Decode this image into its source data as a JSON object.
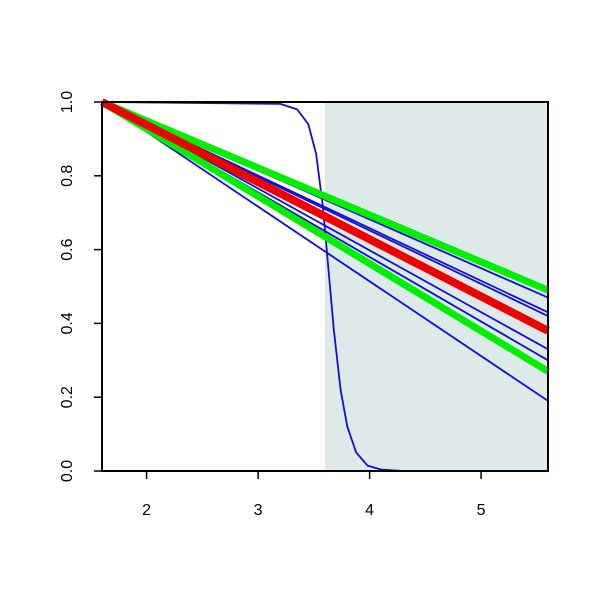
{
  "chart_data": {
    "type": "line",
    "xlim": [
      1.6,
      5.6
    ],
    "ylim": [
      0,
      1
    ],
    "xticks": [
      2,
      3,
      4,
      5
    ],
    "yticks": [
      {
        "value": 0,
        "label": "0.0"
      },
      0.2,
      0.4,
      0.6,
      0.8,
      {
        "value": 1,
        "label": "1.0"
      }
    ],
    "shade": {
      "x": [
        3.6,
        5.6
      ],
      "color": "#deeaea"
    },
    "series": [
      {
        "color": "#1010d0",
        "width": 1.8,
        "x": [
          1.6,
          5.6
        ],
        "values": [
          1,
          0.19
        ]
      },
      {
        "color": "#1010d0",
        "width": 1.8,
        "x": [
          1.6,
          5.6
        ],
        "values": [
          1,
          0.3
        ]
      },
      {
        "color": "#1010d0",
        "width": 1.8,
        "x": [
          1.6,
          5.6
        ],
        "values": [
          1,
          0.33
        ]
      },
      {
        "color": "#1010d0",
        "width": 1.8,
        "x": [
          1.6,
          5.6
        ],
        "values": [
          1,
          0.42
        ]
      },
      {
        "color": "#1010d0",
        "width": 1.8,
        "x": [
          1.6,
          5.6
        ],
        "values": [
          1,
          0.43
        ]
      },
      {
        "color": "#1010d0",
        "width": 1.8,
        "x": [
          1.6,
          5.6
        ],
        "values": [
          1,
          0.47
        ]
      },
      {
        "color": "#1010d0",
        "width": 1.8,
        "x": [
          1.6,
          3.2,
          3.35,
          3.45,
          3.52,
          3.58,
          3.63,
          3.68,
          3.74,
          3.8,
          3.88,
          3.98,
          4.1,
          4.3,
          5.6
        ],
        "values": [
          1,
          0.995,
          0.98,
          0.94,
          0.86,
          0.72,
          0.55,
          0.38,
          0.22,
          0.12,
          0.05,
          0.015,
          0.004,
          0,
          0
        ]
      },
      {
        "color": "#00ee00",
        "width": 7,
        "x": [
          1.6,
          5.6
        ],
        "values": [
          1,
          0.27
        ]
      },
      {
        "color": "#00ee00",
        "width": 7,
        "x": [
          1.6,
          5.6
        ],
        "values": [
          1,
          0.49
        ]
      },
      {
        "color": "#ee0000",
        "width": 8,
        "x": [
          1.6,
          5.6
        ],
        "values": [
          1,
          0.38
        ]
      }
    ]
  }
}
